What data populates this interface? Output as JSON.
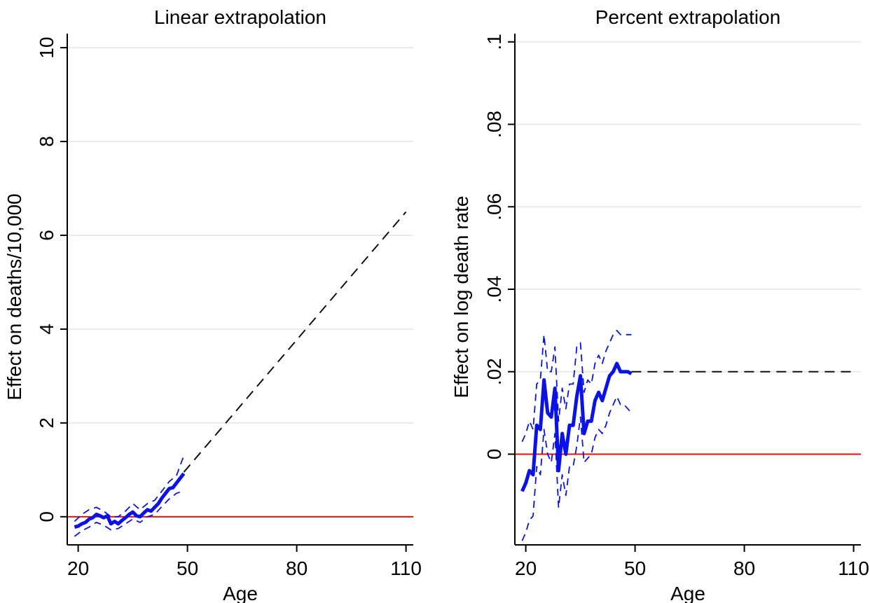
{
  "colors": {
    "grid": "#e6ecee",
    "zero_line": "#e3120b",
    "estimate": "#0b12e8",
    "ci": "#0b12e8",
    "extrapolation": "#111111",
    "axis": "#000000"
  },
  "chart_data": [
    {
      "type": "line",
      "title": "Linear extrapolation",
      "xlabel": "Age",
      "ylabel": "Effect on deaths/10,000",
      "xlim": [
        17,
        112
      ],
      "ylim": [
        -0.6,
        10.3
      ],
      "xticks": [
        20,
        50,
        80,
        110
      ],
      "xtick_labels": [
        "20",
        "50",
        "80",
        "110"
      ],
      "yticks": [
        0,
        2,
        4,
        6,
        8,
        10
      ],
      "ytick_labels": [
        "0",
        "2",
        "4",
        "6",
        "8",
        "10"
      ],
      "grid": true,
      "reference_line": 0,
      "series": [
        {
          "role": "estimate",
          "x": [
            19,
            20,
            21,
            22,
            23,
            24,
            25,
            26,
            27,
            28,
            29,
            30,
            31,
            32,
            33,
            34,
            35,
            36,
            37,
            38,
            39,
            40,
            41,
            42,
            43,
            44,
            45,
            46,
            47,
            48,
            49
          ],
          "y": [
            -0.22,
            -0.2,
            -0.15,
            -0.12,
            -0.05,
            -0.02,
            0.05,
            0.02,
            -0.02,
            0.02,
            -0.15,
            -0.1,
            -0.15,
            -0.08,
            -0.02,
            0.05,
            0.1,
            0.02,
            0.0,
            0.08,
            0.15,
            0.12,
            0.2,
            0.28,
            0.4,
            0.5,
            0.6,
            0.62,
            0.72,
            0.82,
            0.92
          ]
        },
        {
          "role": "ci_upper",
          "x": [
            19,
            21,
            23,
            25,
            27,
            29,
            31,
            33,
            35,
            37,
            39,
            41,
            43,
            45,
            47,
            49
          ],
          "y": [
            -0.1,
            0.05,
            0.15,
            0.2,
            0.12,
            0.0,
            0.0,
            0.12,
            0.28,
            0.15,
            0.28,
            0.35,
            0.55,
            0.75,
            0.88,
            1.3
          ]
        },
        {
          "role": "ci_lower",
          "x": [
            19,
            21,
            23,
            25,
            27,
            29,
            31,
            33,
            35,
            37,
            39,
            41,
            43,
            45,
            47,
            49
          ],
          "y": [
            -0.42,
            -0.3,
            -0.22,
            -0.12,
            -0.18,
            -0.28,
            -0.25,
            -0.15,
            -0.05,
            -0.12,
            0.0,
            0.05,
            0.22,
            0.38,
            0.5,
            0.55
          ]
        },
        {
          "role": "extrapolation",
          "x": [
            49,
            110
          ],
          "y": [
            0.95,
            6.5
          ]
        }
      ]
    },
    {
      "type": "line",
      "title": "Percent extrapolation",
      "xlabel": "Age",
      "ylabel": "Effect on log death rate",
      "xlim": [
        17,
        112
      ],
      "ylim": [
        -0.022,
        0.102
      ],
      "xticks": [
        20,
        50,
        80,
        110
      ],
      "xtick_labels": [
        "20",
        "50",
        "80",
        "110"
      ],
      "yticks": [
        0,
        0.02,
        0.04,
        0.06,
        0.08,
        0.1
      ],
      "ytick_labels": [
        "0",
        ".02",
        ".04",
        ".06",
        ".08",
        ".1"
      ],
      "grid": true,
      "reference_line": 0,
      "series": [
        {
          "role": "estimate",
          "x": [
            19,
            20,
            21,
            22,
            23,
            24,
            25,
            26,
            27,
            28,
            29,
            30,
            31,
            32,
            33,
            34,
            35,
            36,
            37,
            38,
            39,
            40,
            41,
            42,
            43,
            44,
            45,
            46,
            47,
            48,
            49
          ],
          "y": [
            -0.009,
            -0.007,
            -0.004,
            -0.005,
            0.007,
            0.006,
            0.018,
            0.01,
            0.009,
            0.016,
            -0.004,
            0.005,
            0.0,
            0.007,
            0.007,
            0.014,
            0.019,
            0.005,
            0.008,
            0.008,
            0.013,
            0.015,
            0.013,
            0.016,
            0.019,
            0.02,
            0.022,
            0.02,
            0.02,
            0.02,
            0.0195
          ]
        },
        {
          "role": "ci_upper",
          "x": [
            19,
            20,
            21,
            22,
            23,
            24,
            25,
            26,
            27,
            28,
            29,
            30,
            31,
            32,
            33,
            34,
            35,
            36,
            37,
            38,
            39,
            40,
            41,
            42,
            43,
            44,
            45,
            46,
            47,
            48,
            49
          ],
          "y": [
            0.003,
            0.005,
            0.008,
            0.006,
            0.017,
            0.018,
            0.029,
            0.02,
            0.02,
            0.026,
            0.008,
            0.016,
            0.011,
            0.017,
            0.017,
            0.026,
            0.027,
            0.015,
            0.018,
            0.017,
            0.022,
            0.024,
            0.022,
            0.025,
            0.027,
            0.029,
            0.03,
            0.029,
            0.029,
            0.029,
            0.029
          ]
        },
        {
          "role": "ci_lower",
          "x": [
            19,
            20,
            21,
            22,
            23,
            24,
            25,
            26,
            27,
            28,
            29,
            30,
            31,
            32,
            33,
            34,
            35,
            36,
            37,
            38,
            39,
            40,
            41,
            42,
            43,
            44,
            45,
            46,
            47,
            48,
            49
          ],
          "y": [
            -0.021,
            -0.019,
            -0.016,
            -0.015,
            -0.003,
            -0.005,
            0.006,
            0.0,
            -0.002,
            0.005,
            -0.013,
            -0.005,
            -0.01,
            -0.003,
            -0.003,
            0.002,
            0.009,
            -0.002,
            -0.001,
            0.0,
            0.004,
            0.006,
            0.005,
            0.007,
            0.01,
            0.012,
            0.014,
            0.012,
            0.012,
            0.011,
            0.01
          ]
        },
        {
          "role": "extrapolation",
          "x": [
            49,
            110
          ],
          "y": [
            0.02,
            0.02
          ]
        }
      ]
    }
  ]
}
